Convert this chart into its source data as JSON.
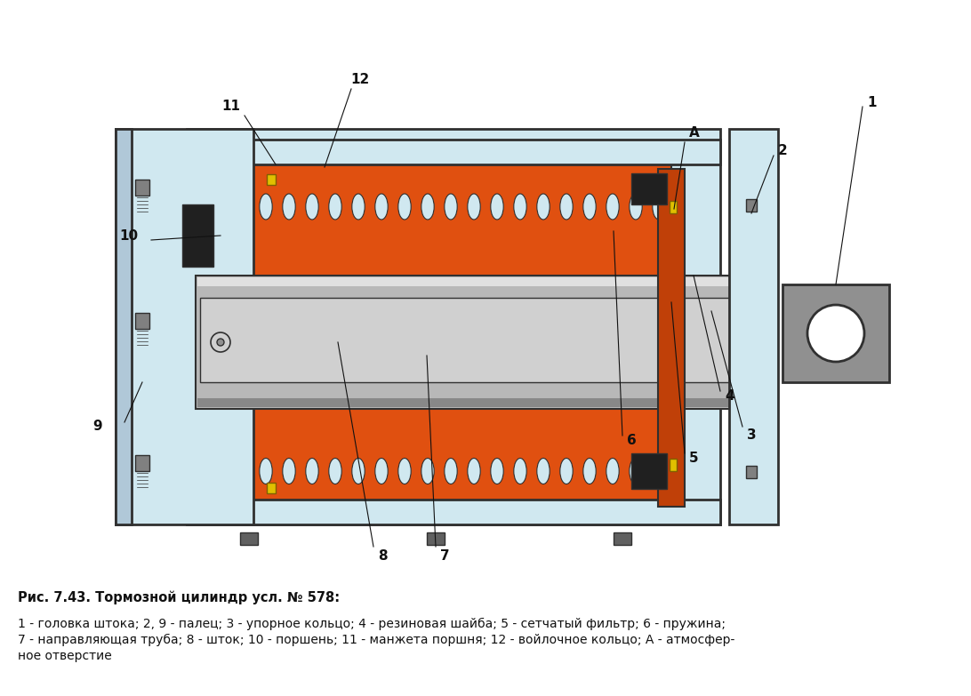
{
  "title_bold": "Рис. 7.43. Тормозной цилиндр усл. № 578:",
  "caption": "1 - головка штока; 2, 9 - палец; 3 - упорное кольцо; 4 - резиновая шайба; 5 - сетчатый фильтр; 6 - пружина;\n7 - направляющая труба; 8 - шток; 10 - поршень; 11 - манжета поршня; 12 - войлочное кольцо; А - атмосфер-\nное отверстие",
  "bg_color": "#ffffff",
  "body_color": "#d0e8f0",
  "piston_color": "#e05010",
  "rod_color": "#c8c8c8",
  "dark_color": "#303030",
  "yellow_color": "#e0c000",
  "head_color": "#909090",
  "spring_color": "#b0b8c0"
}
